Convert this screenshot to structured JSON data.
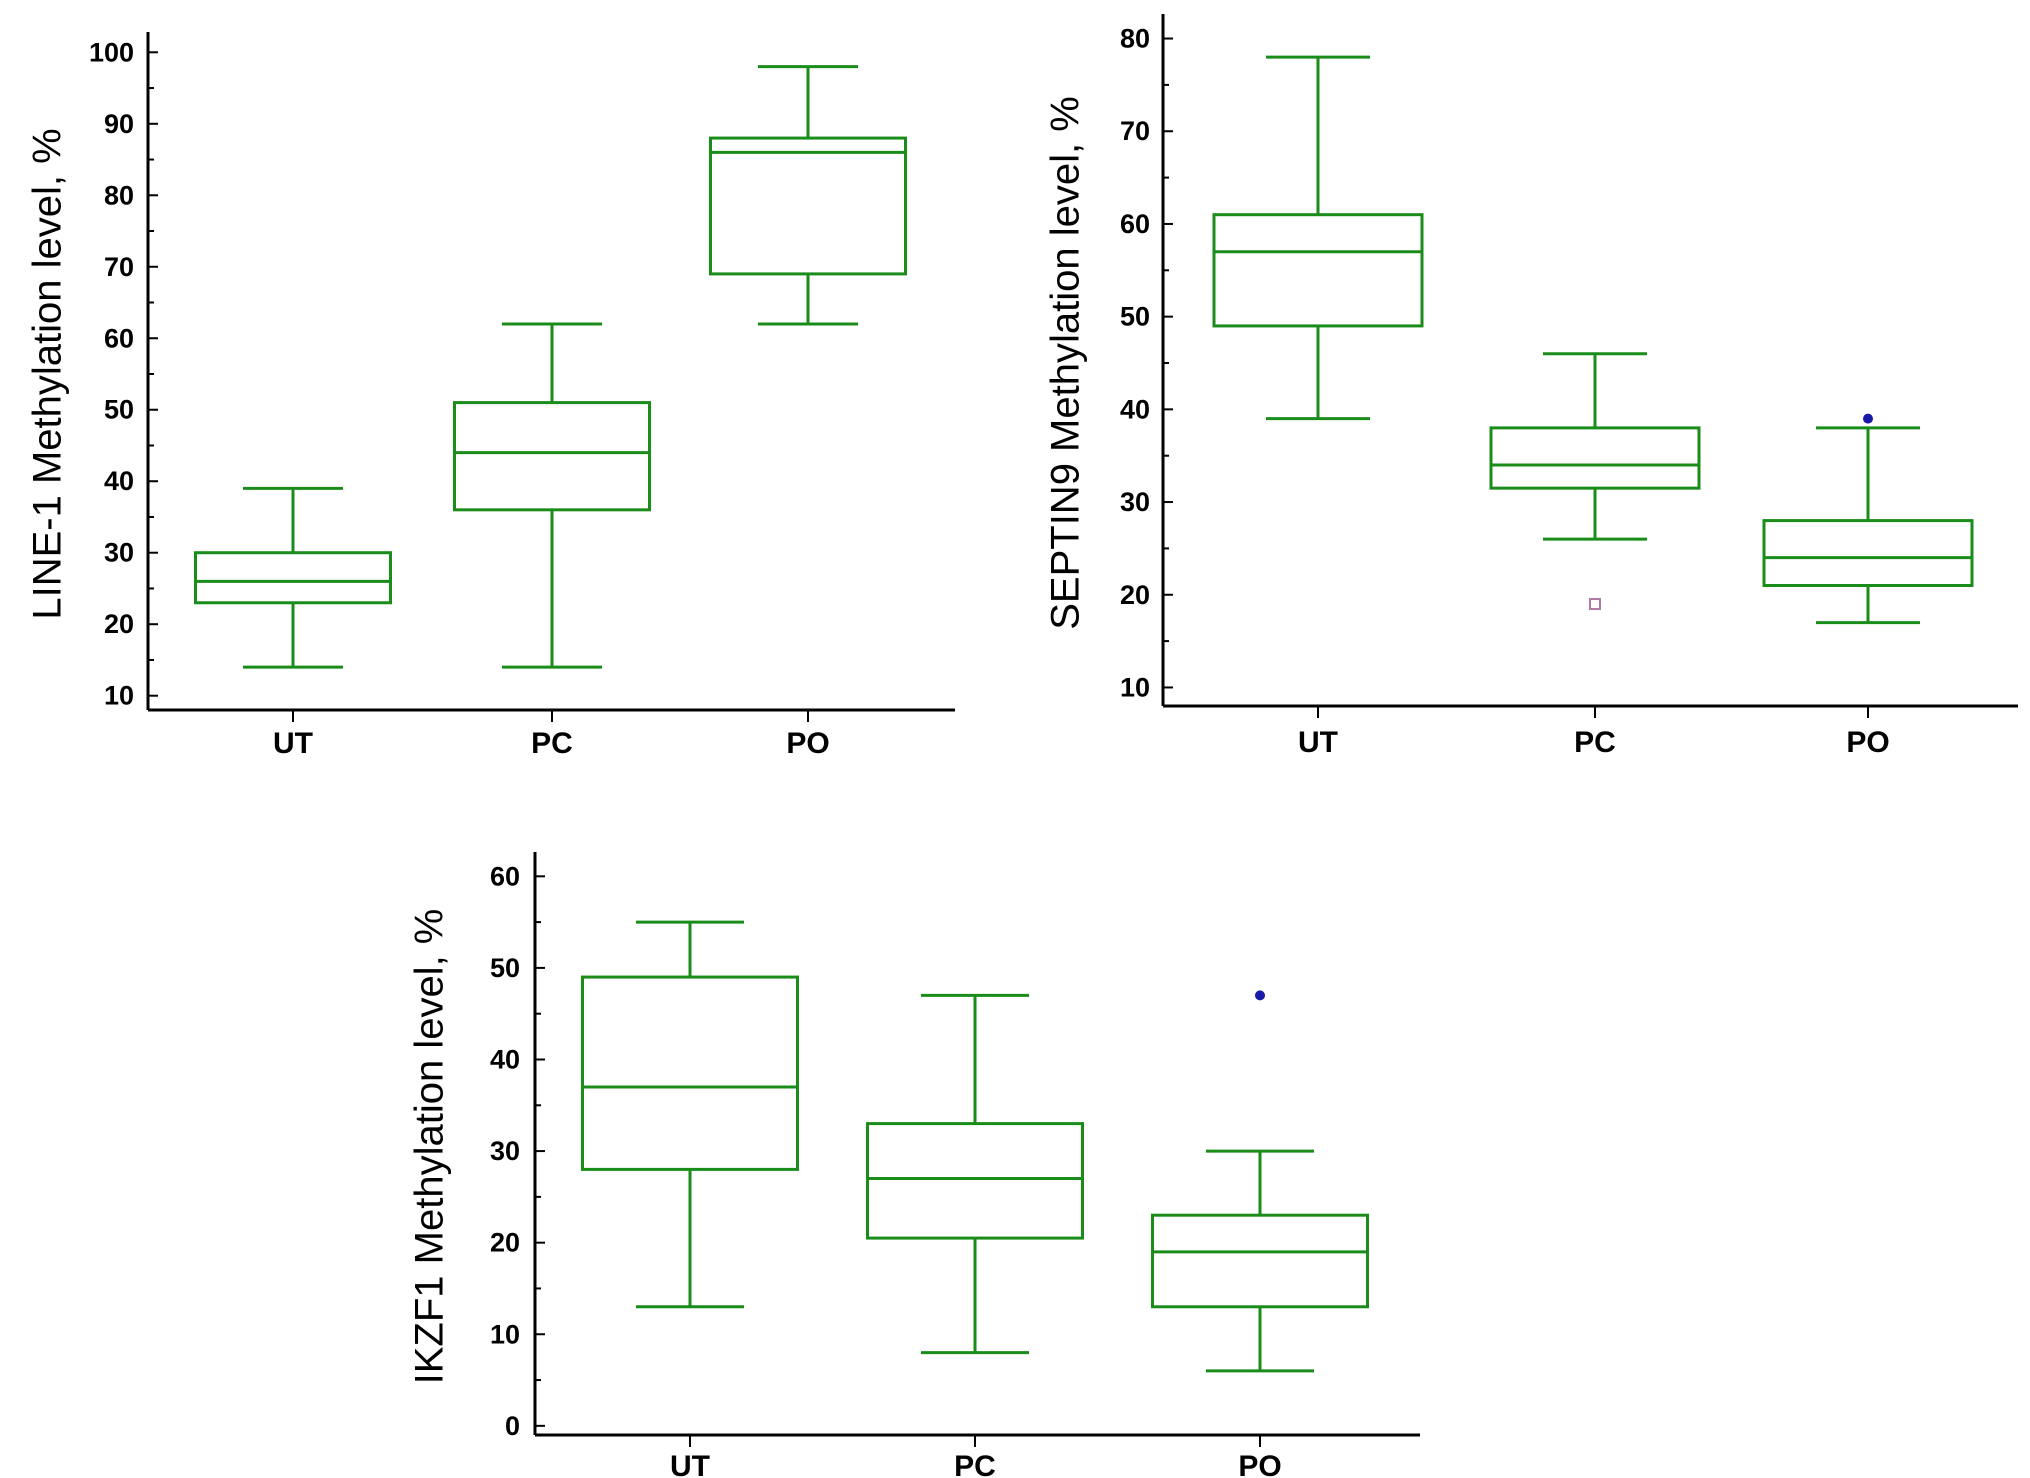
{
  "chart_data": [
    {
      "id": "line1",
      "type": "box",
      "ylabel": "LINE-1 Methylation level, %",
      "ylim": [
        8,
        102
      ],
      "yticks": [
        10,
        20,
        30,
        40,
        50,
        60,
        70,
        80,
        90,
        100
      ],
      "categories": [
        "UT",
        "PC",
        "PO"
      ],
      "boxes": [
        {
          "category": "UT",
          "min": 14,
          "q1": 23,
          "median": 26,
          "q3": 30,
          "max": 39,
          "outliers": []
        },
        {
          "category": "PC",
          "min": 14,
          "q1": 36,
          "median": 44,
          "q3": 51,
          "max": 62,
          "outliers": []
        },
        {
          "category": "PO",
          "min": 62,
          "q1": 69,
          "median": 86,
          "q3": 88,
          "max": 98,
          "outliers": []
        }
      ]
    },
    {
      "id": "septin9",
      "type": "box",
      "ylabel": "SEPTIN9 Methylation level, %",
      "ylim": [
        8,
        82
      ],
      "yticks": [
        10,
        20,
        30,
        40,
        50,
        60,
        70,
        80
      ],
      "categories": [
        "UT",
        "PC",
        "PO"
      ],
      "boxes": [
        {
          "category": "UT",
          "min": 39,
          "q1": 49,
          "median": 57,
          "q3": 61,
          "max": 78,
          "outliers": []
        },
        {
          "category": "PC",
          "min": 26,
          "q1": 31.5,
          "median": 34,
          "q3": 38,
          "max": 46,
          "outliers": [
            {
              "value": 19,
              "marker": "square"
            }
          ]
        },
        {
          "category": "PO",
          "min": 17,
          "q1": 21,
          "median": 24,
          "q3": 28,
          "max": 38,
          "outliers": [
            {
              "value": 39,
              "marker": "dot"
            }
          ]
        }
      ]
    },
    {
      "id": "ikzf1",
      "type": "box",
      "ylabel": "IKZF1 Methylation level, %",
      "ylim": [
        -1,
        62
      ],
      "yticks": [
        0,
        10,
        20,
        30,
        40,
        50,
        60
      ],
      "categories": [
        "UT",
        "PC",
        "PO"
      ],
      "boxes": [
        {
          "category": "UT",
          "min": 13,
          "q1": 28,
          "median": 37,
          "q3": 49,
          "max": 55,
          "outliers": []
        },
        {
          "category": "PC",
          "min": 8,
          "q1": 20.5,
          "median": 27,
          "q3": 33,
          "max": 47,
          "outliers": []
        },
        {
          "category": "PO",
          "min": 6,
          "q1": 13,
          "median": 19,
          "q3": 23,
          "max": 30,
          "outliers": [
            {
              "value": 47,
              "marker": "dot"
            }
          ]
        }
      ]
    }
  ],
  "colors": {
    "box": "#1a8c1a",
    "axis": "#000000",
    "outlier_dot": "#1a1aa8",
    "outlier_square": "#b07aa8"
  }
}
